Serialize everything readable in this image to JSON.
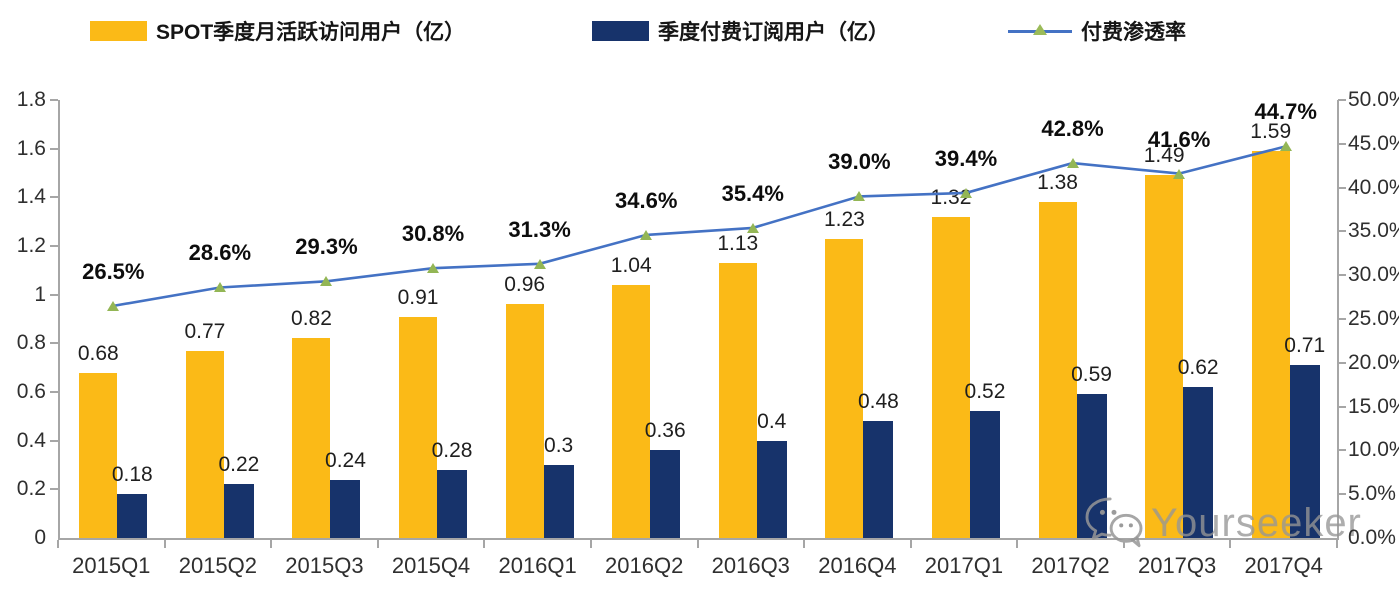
{
  "legend": {
    "items": [
      {
        "label": "SPOT季度月活跃访问用户（亿）",
        "swatch": "bar",
        "color": "#FBBA17"
      },
      {
        "label": "季度付费订阅用户（亿）",
        "swatch": "bar",
        "color": "#17336B"
      },
      {
        "label": "付费渗透率",
        "swatch": "line-with-triangle-marker",
        "color": "#4472C4",
        "marker_color": "#9BBB59"
      }
    ],
    "position": "top"
  },
  "watermark": {
    "text": "Yourseeker",
    "icon": "wechat-icon"
  },
  "chart_data": {
    "type": "bar+line",
    "categories": [
      "2015Q1",
      "2015Q2",
      "2015Q3",
      "2015Q4",
      "2016Q1",
      "2016Q2",
      "2016Q3",
      "2016Q4",
      "2017Q1",
      "2017Q2",
      "2017Q3",
      "2017Q4"
    ],
    "series": [
      {
        "name": "SPOT季度月活跃访问用户（亿）",
        "type": "bar",
        "axis": "left",
        "color": "#FBBA17",
        "values": [
          0.68,
          0.77,
          0.82,
          0.91,
          0.96,
          1.04,
          1.13,
          1.23,
          1.32,
          1.38,
          1.49,
          1.59
        ],
        "labels": [
          "0.68",
          "0.77",
          "0.82",
          "0.91",
          "0.96",
          "1.04",
          "1.13",
          "1.23",
          "1.32",
          "1.38",
          "1.49",
          "1.59"
        ]
      },
      {
        "name": "季度付费订阅用户（亿）",
        "type": "bar",
        "axis": "left",
        "color": "#17336B",
        "values": [
          0.18,
          0.22,
          0.24,
          0.28,
          0.3,
          0.36,
          0.4,
          0.48,
          0.52,
          0.59,
          0.62,
          0.71
        ],
        "labels": [
          "0.18",
          "0.22",
          "0.24",
          "0.28",
          "0.3",
          "0.36",
          "0.4",
          "0.48",
          "0.52",
          "0.59",
          "0.62",
          "0.71"
        ]
      },
      {
        "name": "付费渗透率",
        "type": "line",
        "axis": "right",
        "color": "#4472C4",
        "marker": "triangle",
        "marker_color": "#9BBB59",
        "values": [
          26.5,
          28.6,
          29.3,
          30.8,
          31.3,
          34.6,
          35.4,
          39.0,
          39.4,
          42.8,
          41.6,
          44.7
        ],
        "labels": [
          "26.5%",
          "28.6%",
          "29.3%",
          "30.8%",
          "31.3%",
          "34.6%",
          "35.4%",
          "39.0%",
          "39.4%",
          "42.8%",
          "41.6%",
          "44.7%"
        ]
      }
    ],
    "left_axis": {
      "min": 0,
      "max": 1.8,
      "step": 0.2,
      "ticks": [
        "0",
        "0.2",
        "0.4",
        "0.6",
        "0.8",
        "1",
        "1.2",
        "1.4",
        "1.6",
        "1.8"
      ]
    },
    "right_axis": {
      "min": 0,
      "max": 50,
      "step": 5,
      "ticks": [
        "0.0%",
        "5.0%",
        "10.0%",
        "15.0%",
        "20.0%",
        "25.0%",
        "30.0%",
        "35.0%",
        "40.0%",
        "45.0%",
        "50.0%"
      ],
      "labels_clipped_at_image_edge": true
    },
    "grid": false,
    "legend_position": "top",
    "background": "#ffffff",
    "axis_color": "#a6a6a6"
  }
}
